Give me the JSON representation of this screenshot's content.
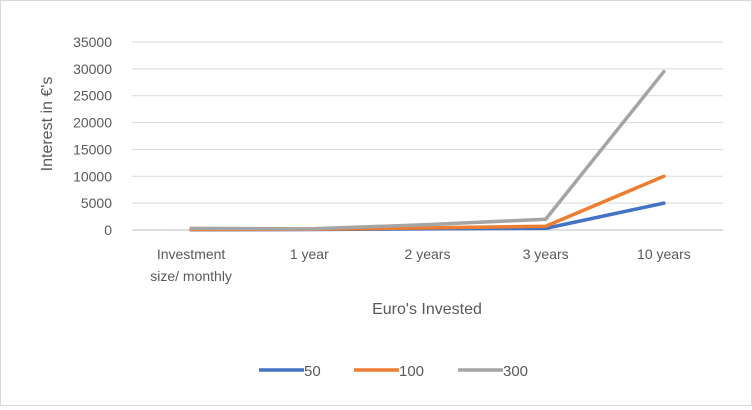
{
  "chart_data": {
    "type": "line",
    "title": "",
    "xlabel": "Euro's Invested",
    "ylabel": "Interest in €'s",
    "categories": [
      "Investment size/ monthly",
      "1 year",
      "2 years",
      "3 years",
      "10 years"
    ],
    "category_lines": [
      [
        "Investment",
        "size/ monthly"
      ],
      [
        "1 year"
      ],
      [
        "2 years"
      ],
      [
        "3 years"
      ],
      [
        "10 years"
      ]
    ],
    "ylim": [
      0,
      35000
    ],
    "yticks": [
      0,
      5000,
      10000,
      15000,
      20000,
      25000,
      30000,
      35000
    ],
    "grid": true,
    "legend_position": "bottom",
    "series": [
      {
        "name": "50",
        "color": "#4472C4",
        "values": [
          50,
          100,
          200,
          300,
          5000
        ]
      },
      {
        "name": "100",
        "color": "#ED7D31",
        "values": [
          100,
          150,
          400,
          700,
          10000
        ]
      },
      {
        "name": "300",
        "color": "#A5A5A5",
        "values": [
          300,
          200,
          1000,
          2000,
          29500
        ]
      }
    ]
  }
}
